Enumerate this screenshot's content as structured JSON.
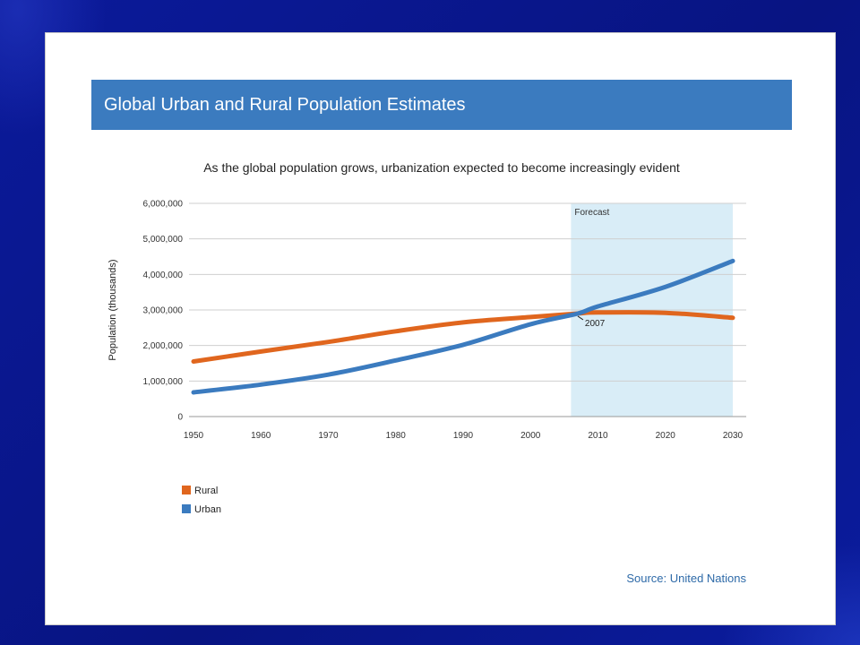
{
  "chart_data": {
    "type": "line",
    "title": "Global Urban and Rural Population Estimates",
    "subtitle": "As the global population grows, urbanization expected to become increasingly evident",
    "xlabel": "",
    "ylabel": "Population (thousands)",
    "x": [
      1950,
      1960,
      1970,
      1980,
      1990,
      2000,
      2007,
      2010,
      2020,
      2030
    ],
    "xticks": [
      "1950",
      "1960",
      "1970",
      "1980",
      "1990",
      "2000",
      "2010",
      "2020",
      "2030"
    ],
    "xlim": [
      1950,
      2030
    ],
    "ylim": [
      0,
      6000000
    ],
    "yticks": [
      "0",
      "1,000,000",
      "2,000,000",
      "3,000,000",
      "4,000,000",
      "5,000,000",
      "6,000,000"
    ],
    "series": [
      {
        "name": "Rural",
        "color": "#e0661e",
        "values": [
          1550000,
          1830000,
          2100000,
          2400000,
          2650000,
          2800000,
          2900000,
          2930000,
          2920000,
          2780000
        ]
      },
      {
        "name": "Urban",
        "color": "#3b7bbf",
        "values": [
          680000,
          900000,
          1180000,
          1580000,
          2020000,
          2600000,
          2900000,
          3100000,
          3650000,
          4380000
        ]
      }
    ],
    "forecast": {
      "label": "Forecast",
      "x_start": 2006,
      "x_end": 2030,
      "color": "#d9edf7"
    },
    "annotation": {
      "label": "2007",
      "x": 2007,
      "y": 2900000
    },
    "grid": true,
    "legend": "bottom-left"
  },
  "source": "Source: United Nations",
  "colors": {
    "header_band": "#3b7bbf",
    "background": "#0a168c"
  }
}
